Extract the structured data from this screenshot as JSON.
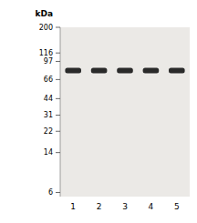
{
  "chart_data": {
    "type": "gel",
    "y_label": "kDa",
    "categories": [
      "1",
      "2",
      "3",
      "4",
      "5"
    ],
    "values": [
      80,
      80,
      80,
      80,
      80
    ],
    "color": "#2a2a2a",
    "log": "y",
    "ylim": [
      5.5,
      200
    ],
    "yticks": [
      200,
      116,
      97,
      66,
      44,
      31,
      22,
      14,
      6
    ]
  }
}
